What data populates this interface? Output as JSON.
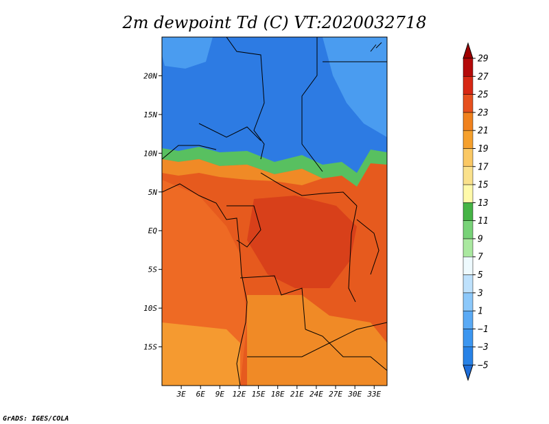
{
  "chart_data": {
    "type": "heatmap",
    "title": "2m dewpoint Td (C) VT:2020032718",
    "lon_range": [
      0,
      35
    ],
    "lat_range": [
      -20,
      25
    ],
    "x_ticks": [
      "3E",
      "6E",
      "9E",
      "12E",
      "15E",
      "18E",
      "21E",
      "24E",
      "27E",
      "30E",
      "33E"
    ],
    "x_tick_values": [
      3,
      6,
      9,
      12,
      15,
      18,
      21,
      24,
      27,
      30,
      33
    ],
    "y_ticks": [
      "20N",
      "15N",
      "10N",
      "5N",
      "EQ",
      "5S",
      "10S",
      "15S"
    ],
    "y_tick_values": [
      20,
      15,
      10,
      5,
      0,
      -5,
      -10,
      -15
    ],
    "colorbar": {
      "labels": [
        "29",
        "27",
        "25",
        "23",
        "21",
        "19",
        "17",
        "15",
        "13",
        "11",
        "9",
        "7",
        "5",
        "3",
        "1",
        "−1",
        "−3",
        "−5"
      ],
      "levels": [
        -5,
        -3,
        -1,
        1,
        3,
        5,
        7,
        9,
        11,
        13,
        15,
        17,
        19,
        21,
        23,
        25,
        27,
        29
      ],
      "colors": [
        "#1e6ed9",
        "#2882e6",
        "#3c96f0",
        "#5aaaf5",
        "#8cc8fa",
        "#bee1fc",
        "#eefafe",
        "#aae8a0",
        "#78d278",
        "#46b446",
        "#fffaaa",
        "#fae18c",
        "#fac864",
        "#f5a02d",
        "#f0821e",
        "#e6501e",
        "#d72814",
        "#b40a0a",
        "#a00000"
      ],
      "min_arrow_color": "#1e6ed9",
      "max_arrow_color": "#a00000"
    },
    "fields": {
      "sahara_color": "#2d7be3",
      "sahara_light_color": "#4a9cf0",
      "moist_band_color": "#58c060",
      "equatorial_color": "#e65a1e",
      "central_basin_color": "#d8401a",
      "atlantic_color": "#ee6a24",
      "south_atlantic_color": "#f59a30",
      "southern_land_color": "#f08a26"
    }
  },
  "footer": {
    "credit": "GrADS: IGES/COLA"
  }
}
